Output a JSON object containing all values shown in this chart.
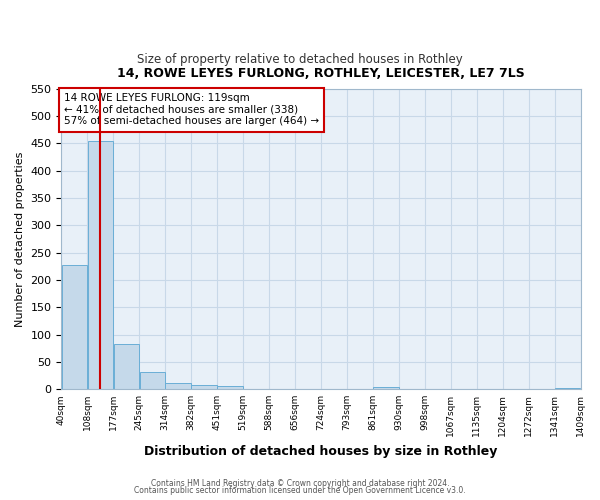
{
  "title": "14, ROWE LEYES FURLONG, ROTHLEY, LEICESTER, LE7 7LS",
  "subtitle": "Size of property relative to detached houses in Rothley",
  "xlabel": "Distribution of detached houses by size in Rothley",
  "ylabel": "Number of detached properties",
  "bar_heights": [
    228,
    455,
    83,
    32,
    12,
    7,
    5,
    0,
    0,
    0,
    0,
    0,
    4,
    0,
    0,
    0,
    0,
    0,
    0,
    2
  ],
  "bar_color": "#c5d9ea",
  "bar_edge_color": "#6aaed6",
  "property_line_x": 1,
  "property_line_color": "#cc0000",
  "ylim": [
    0,
    550
  ],
  "yticks": [
    0,
    50,
    100,
    150,
    200,
    250,
    300,
    350,
    400,
    450,
    500,
    550
  ],
  "xtick_labels": [
    "40sqm",
    "108sqm",
    "177sqm",
    "245sqm",
    "314sqm",
    "382sqm",
    "451sqm",
    "519sqm",
    "588sqm",
    "656sqm",
    "724sqm",
    "793sqm",
    "861sqm",
    "930sqm",
    "998sqm",
    "1067sqm",
    "1135sqm",
    "1204sqm",
    "1272sqm",
    "1341sqm",
    "1409sqm"
  ],
  "annotation_box_text": "14 ROWE LEYES FURLONG: 119sqm\n← 41% of detached houses are smaller (338)\n57% of semi-detached houses are larger (464) →",
  "annotation_box_color": "#cc0000",
  "grid_color": "#c8d8e8",
  "background_color": "#e8f0f8",
  "footer_line1": "Contains HM Land Registry data © Crown copyright and database right 2024.",
  "footer_line2": "Contains public sector information licensed under the Open Government Licence v3.0."
}
